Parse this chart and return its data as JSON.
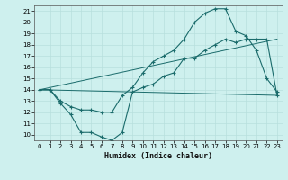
{
  "xlabel": "Humidex (Indice chaleur)",
  "background_color": "#cef0ee",
  "grid_color": "#b8dfdd",
  "line_color": "#1a6b6b",
  "xlim": [
    -0.5,
    23.5
  ],
  "ylim": [
    9.5,
    21.5
  ],
  "xticks": [
    0,
    1,
    2,
    3,
    4,
    5,
    6,
    7,
    8,
    9,
    10,
    11,
    12,
    13,
    14,
    15,
    16,
    17,
    18,
    19,
    20,
    21,
    22,
    23
  ],
  "yticks": [
    10,
    11,
    12,
    13,
    14,
    15,
    16,
    17,
    18,
    19,
    20,
    21
  ],
  "curve_bottom": {
    "x": [
      0,
      1,
      2,
      3,
      4,
      5,
      6,
      7,
      8,
      9,
      10,
      11,
      12,
      13,
      14,
      15,
      16,
      17,
      18,
      19,
      20,
      21,
      22,
      23
    ],
    "y": [
      14.0,
      14.0,
      12.8,
      11.8,
      10.2,
      10.2,
      9.8,
      9.5,
      10.2,
      13.8,
      14.2,
      14.5,
      15.2,
      15.5,
      16.8,
      16.8,
      17.5,
      18.0,
      18.5,
      18.2,
      18.5,
      18.5,
      18.5,
      13.5
    ]
  },
  "curve_top": {
    "x": [
      0,
      1,
      2,
      3,
      4,
      5,
      6,
      7,
      8,
      9,
      10,
      11,
      12,
      13,
      14,
      15,
      16,
      17,
      18,
      19,
      20,
      21,
      22,
      23
    ],
    "y": [
      14.0,
      14.0,
      13.0,
      12.5,
      12.2,
      12.2,
      12.0,
      12.0,
      13.5,
      14.2,
      15.5,
      16.5,
      17.0,
      17.5,
      18.5,
      20.0,
      20.8,
      21.2,
      21.2,
      19.2,
      18.8,
      17.5,
      15.0,
      13.8
    ]
  },
  "line_lower": {
    "x": [
      0,
      23
    ],
    "y": [
      14.0,
      13.5
    ]
  },
  "line_upper": {
    "x": [
      0,
      23
    ],
    "y": [
      14.0,
      18.5
    ]
  }
}
